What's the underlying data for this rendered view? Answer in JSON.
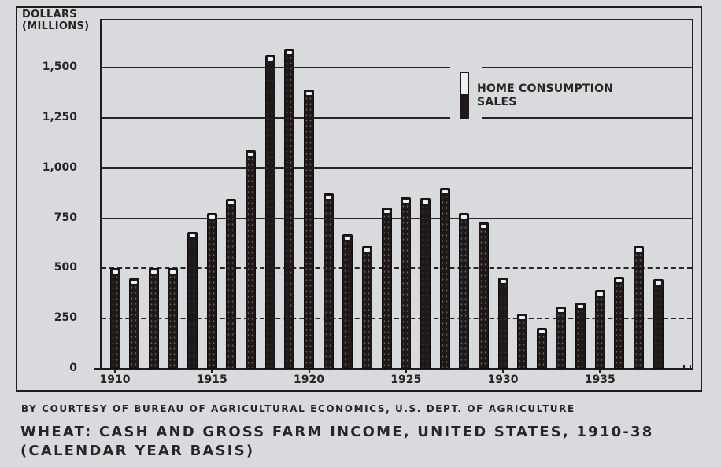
{
  "chart_data": {
    "type": "bar",
    "stacked": true,
    "title": "WHEAT: CASH AND GROSS FARM INCOME, UNITED STATES, 1910-38",
    "subtitle": "(CALENDAR YEAR BASIS)",
    "credit": "BY COURTESY OF BUREAU OF AGRICULTURAL ECONOMICS, U.S. DEPT. OF AGRICULTURE",
    "ylabel": "DOLLARS (MILLIONS)",
    "xlabel": "",
    "ylim": [
      0,
      1700
    ],
    "yticks": [
      0,
      250,
      500,
      750,
      1000,
      1250,
      1500
    ],
    "ytick_labels": [
      "0",
      "250",
      "500",
      "750",
      "1,000",
      "1,250",
      "1,500"
    ],
    "xtick_labels": [
      "1910",
      "1915",
      "1920",
      "1925",
      "1930",
      "1935"
    ],
    "grid": true,
    "legend": [
      "HOME CONSUMPTION",
      "SALES"
    ],
    "legend_position": "upper right",
    "categories": [
      "1910",
      "1911",
      "1912",
      "1913",
      "1914",
      "1915",
      "1916",
      "1917",
      "1918",
      "1919",
      "1920",
      "1921",
      "1922",
      "1923",
      "1924",
      "1925",
      "1926",
      "1927",
      "1928",
      "1929",
      "1930",
      "1931",
      "1932",
      "1933",
      "1934",
      "1935",
      "1936",
      "1937",
      "1938"
    ],
    "series": [
      {
        "name": "SALES",
        "values": [
          485,
          435,
          485,
          485,
          665,
          760,
          830,
          1070,
          1545,
          1575,
          1370,
          860,
          655,
          595,
          790,
          840,
          835,
          885,
          760,
          715,
          440,
          262,
          192,
          295,
          315,
          375,
          445,
          595,
          430
        ]
      },
      {
        "name": "HOME CONSUMPTION",
        "values": [
          17,
          15,
          17,
          17,
          15,
          15,
          15,
          20,
          20,
          20,
          20,
          15,
          15,
          15,
          15,
          15,
          15,
          15,
          15,
          15,
          15,
          13,
          13,
          15,
          15,
          15,
          15,
          15,
          15
        ]
      }
    ],
    "totals": [
      502,
      450,
      502,
      502,
      680,
      775,
      845,
      1090,
      1565,
      1595,
      1390,
      875,
      670,
      610,
      805,
      855,
      850,
      900,
      775,
      730,
      455,
      275,
      205,
      310,
      330,
      390,
      460,
      610,
      445
    ]
  },
  "axis": {
    "ylabel_line1": "DOLLARS",
    "ylabel_line2": "(MILLIONS)"
  },
  "colors": {
    "sales": "#1f1819",
    "home_consumption": "#eef0f2",
    "background": "#d9dadd"
  }
}
